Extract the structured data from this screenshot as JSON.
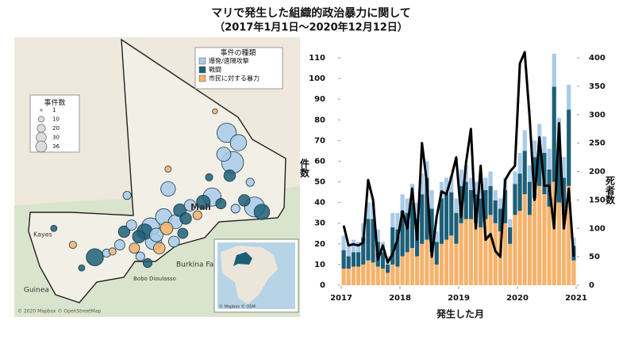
{
  "title": "マリで発生した組織的政治暴力に関して",
  "subtitle": "（2017年1月1日～2020年12月12日）",
  "map": {
    "type_legend_title": "事件の種類",
    "size_legend": {
      "title": "事件数",
      "sizes": [
        1,
        10,
        20,
        30,
        36
      ]
    },
    "labels": [
      "Mali",
      "Kayes",
      "Burkina Faso",
      "Guinea",
      "Bobo Dioulasso"
    ],
    "attribution": "© 2020 Mapbox © OpenStreetMap",
    "inset_attribution": "© Mapbox © OSM",
    "points": [
      {
        "lon": 1.4,
        "lat": 18.4,
        "count": 36,
        "color": "#a9cbe9"
      },
      {
        "lon": 1.0,
        "lat": 20.2,
        "count": 28,
        "color": "#a9cbe9"
      },
      {
        "lon": 1.8,
        "lat": 19.6,
        "count": 20,
        "color": "#a9cbe9"
      },
      {
        "lon": 0.8,
        "lat": 18.9,
        "count": 15,
        "color": "#a9cbe9"
      },
      {
        "lon": 1.2,
        "lat": 17.6,
        "count": 10,
        "color": "#1d5f78"
      },
      {
        "lon": 2.9,
        "lat": 15.7,
        "count": 30,
        "color": "#a9cbe9"
      },
      {
        "lon": 3.4,
        "lat": 15.4,
        "count": 18,
        "color": "#1d5f78"
      },
      {
        "lon": 0.0,
        "lat": 16.3,
        "count": 25,
        "color": "#a9cbe9"
      },
      {
        "lon": -0.6,
        "lat": 16.0,
        "count": 14,
        "color": "#1d5f78"
      },
      {
        "lon": -1.5,
        "lat": 15.8,
        "count": 10,
        "color": "#a9cbe9"
      },
      {
        "lon": -2.2,
        "lat": 15.5,
        "count": 12,
        "color": "#1d5f78"
      },
      {
        "lon": -3.0,
        "lat": 16.8,
        "count": 16,
        "color": "#a9cbe9"
      },
      {
        "lon": -3.3,
        "lat": 15.1,
        "count": 20,
        "color": "#a9cbe9"
      },
      {
        "lon": -4.2,
        "lat": 14.5,
        "count": 24,
        "color": "#a9cbe9"
      },
      {
        "lon": -4.6,
        "lat": 14.2,
        "count": 18,
        "color": "#1d5f78"
      },
      {
        "lon": -3.8,
        "lat": 14.0,
        "count": 14,
        "color": "#a9cbe9"
      },
      {
        "lon": -3.1,
        "lat": 14.4,
        "count": 12,
        "color": "#f6b26b"
      },
      {
        "lon": -2.5,
        "lat": 14.8,
        "count": 15,
        "color": "#a9cbe9"
      },
      {
        "lon": -1.8,
        "lat": 15.0,
        "count": 10,
        "color": "#1d5f78"
      },
      {
        "lon": -4.0,
        "lat": 13.6,
        "count": 20,
        "color": "#a9cbe9"
      },
      {
        "lon": -5.0,
        "lat": 13.9,
        "count": 12,
        "color": "#1d5f78"
      },
      {
        "lon": -5.5,
        "lat": 14.6,
        "count": 8,
        "color": "#a9cbe9"
      },
      {
        "lon": -6.0,
        "lat": 14.2,
        "count": 10,
        "color": "#1d5f78"
      },
      {
        "lon": -6.3,
        "lat": 13.4,
        "count": 8,
        "color": "#a9cbe9"
      },
      {
        "lon": -5.3,
        "lat": 13.2,
        "count": 8,
        "color": "#f6b26b"
      },
      {
        "lon": -8.0,
        "lat": 12.65,
        "count": 22,
        "color": "#1d5f78"
      },
      {
        "lon": -7.2,
        "lat": 12.9,
        "count": 5,
        "color": "#a9cbe9"
      },
      {
        "lon": -9.5,
        "lat": 13.4,
        "count": 4,
        "color": "#f6b26b"
      },
      {
        "lon": -10.8,
        "lat": 14.4,
        "count": 3,
        "color": "#1d5f78"
      },
      {
        "lon": -4.4,
        "lat": 12.3,
        "count": 6,
        "color": "#1d5f78"
      },
      {
        "lon": -3.6,
        "lat": 13.2,
        "count": 10,
        "color": "#f6b26b"
      },
      {
        "lon": -2.0,
        "lat": 14.1,
        "count": 8,
        "color": "#1d5f78"
      },
      {
        "lon": -1.0,
        "lat": 15.2,
        "count": 6,
        "color": "#f6b26b"
      },
      {
        "lon": 0.6,
        "lat": 15.9,
        "count": 8,
        "color": "#1d5f78"
      },
      {
        "lon": 2.2,
        "lat": 16.1,
        "count": 10,
        "color": "#1d5f78"
      },
      {
        "lon": 1.6,
        "lat": 15.6,
        "count": 6,
        "color": "#a9cbe9"
      },
      {
        "lon": -0.2,
        "lat": 17.5,
        "count": 4,
        "color": "#1d5f78"
      },
      {
        "lon": -5.8,
        "lat": 16.4,
        "count": 5,
        "color": "#a9cbe9"
      },
      {
        "lon": -6.8,
        "lat": 13.0,
        "count": 4,
        "color": "#f6b26b"
      },
      {
        "lon": -8.9,
        "lat": 12.0,
        "count": 3,
        "color": "#1d5f78"
      },
      {
        "lon": -3.0,
        "lat": 18.0,
        "count": 3,
        "color": "#f6b26b"
      },
      {
        "lon": 0.2,
        "lat": 21.5,
        "count": 2,
        "color": "#f6b26b"
      },
      {
        "lon": 2.6,
        "lat": 17.2,
        "count": 5,
        "color": "#a9cbe9"
      },
      {
        "lon": -2.6,
        "lat": 13.6,
        "count": 9,
        "color": "#a9cbe9"
      },
      {
        "lon": -4.9,
        "lat": 12.7,
        "count": 6,
        "color": "#a9cbe9"
      }
    ]
  },
  "chart_data": {
    "type": "bar",
    "stacked": true,
    "xlabel": "発生した月",
    "ylabel": "件数",
    "y2label": "死者数",
    "x": [
      2017,
      2017.083,
      2017.167,
      2017.25,
      2017.333,
      2017.417,
      2017.5,
      2017.583,
      2017.667,
      2017.75,
      2017.833,
      2017.917,
      2018,
      2018.083,
      2018.167,
      2018.25,
      2018.333,
      2018.417,
      2018.5,
      2018.583,
      2018.667,
      2018.75,
      2018.833,
      2018.917,
      2019,
      2019.083,
      2019.167,
      2019.25,
      2019.333,
      2019.417,
      2019.5,
      2019.583,
      2019.667,
      2019.75,
      2019.833,
      2019.917,
      2020,
      2020.083,
      2020.167,
      2020.25,
      2020.333,
      2020.417,
      2020.5,
      2020.583,
      2020.667,
      2020.75,
      2020.833,
      2020.917
    ],
    "xlim": [
      2017,
      2021
    ],
    "xticks": [
      2017,
      2018,
      2019,
      2020,
      2021
    ],
    "ylim": [
      0,
      110
    ],
    "yticks": [
      0,
      10,
      20,
      30,
      40,
      50,
      60,
      70,
      80,
      90,
      100,
      110
    ],
    "y2lim": [
      0,
      400
    ],
    "y2ticks": [
      0,
      50,
      100,
      150,
      200,
      250,
      300,
      350,
      400
    ],
    "series": [
      {
        "name": "爆発/遠隔攻撃",
        "color": "#a9cbe9",
        "values": [
          7,
          6,
          6,
          5,
          7,
          8,
          8,
          6,
          5,
          4,
          7,
          8,
          8,
          7,
          9,
          8,
          10,
          8,
          9,
          5,
          8,
          8,
          8,
          7,
          8,
          8,
          6,
          6,
          6,
          6,
          7,
          5,
          5,
          6,
          4,
          6,
          10,
          10,
          8,
          8,
          10,
          8,
          10,
          16,
          12,
          10,
          12,
          4
        ]
      },
      {
        "name": "戦闘",
        "color": "#1d5f78",
        "values": [
          9,
          6,
          7,
          7,
          13,
          20,
          21,
          12,
          8,
          4,
          18,
          18,
          22,
          19,
          22,
          18,
          24,
          30,
          21,
          11,
          22,
          22,
          21,
          15,
          18,
          18,
          14,
          14,
          14,
          14,
          14,
          11,
          11,
          16,
          8,
          15,
          18,
          21,
          16,
          20,
          20,
          20,
          18,
          46,
          29,
          18,
          37,
          7
        ]
      },
      {
        "name": "市民に対する暴力",
        "color": "#f6b26b",
        "values": [
          8,
          8,
          9,
          9,
          10,
          12,
          11,
          9,
          8,
          6,
          10,
          9,
          14,
          16,
          18,
          14,
          20,
          22,
          16,
          10,
          20,
          22,
          24,
          20,
          30,
          32,
          32,
          30,
          28,
          32,
          34,
          30,
          26,
          30,
          20,
          34,
          36,
          44,
          34,
          42,
          48,
          44,
          38,
          50,
          40,
          34,
          48,
          12
        ]
      },
      {
        "type": "line",
        "axis": "y2",
        "color": "#000000",
        "values": [
          105,
          70,
          72,
          70,
          75,
          185,
          150,
          45,
          70,
          40,
          55,
          80,
          130,
          100,
          170,
          80,
          250,
          180,
          50,
          120,
          165,
          160,
          190,
          225,
          120,
          215,
          275,
          100,
          210,
          80,
          90,
          60,
          50,
          185,
          200,
          210,
          390,
          410,
          295,
          150,
          260,
          175,
          175,
          100,
          285,
          100,
          170,
          50
        ]
      }
    ]
  }
}
